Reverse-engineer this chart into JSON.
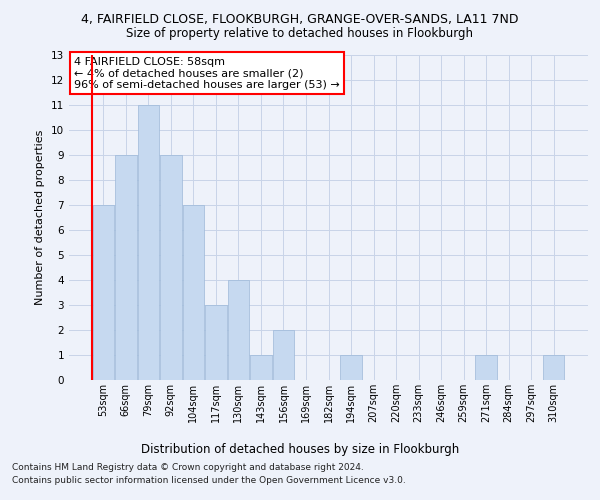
{
  "title_line1": "4, FAIRFIELD CLOSE, FLOOKBURGH, GRANGE-OVER-SANDS, LA11 7ND",
  "title_line2": "Size of property relative to detached houses in Flookburgh",
  "xlabel": "Distribution of detached houses by size in Flookburgh",
  "ylabel": "Number of detached properties",
  "categories": [
    "53sqm",
    "66sqm",
    "79sqm",
    "92sqm",
    "104sqm",
    "117sqm",
    "130sqm",
    "143sqm",
    "156sqm",
    "169sqm",
    "182sqm",
    "194sqm",
    "207sqm",
    "220sqm",
    "233sqm",
    "246sqm",
    "259sqm",
    "271sqm",
    "284sqm",
    "297sqm",
    "310sqm"
  ],
  "values": [
    7,
    9,
    11,
    9,
    7,
    3,
    4,
    1,
    2,
    0,
    0,
    1,
    0,
    0,
    0,
    0,
    0,
    1,
    0,
    0,
    1
  ],
  "bar_color": "#c6d9f0",
  "bar_edge_color": "#9db8d8",
  "annotation_box_text": "4 FAIRFIELD CLOSE: 58sqm\n← 4% of detached houses are smaller (2)\n96% of semi-detached houses are larger (53) →",
  "annotation_box_color": "white",
  "annotation_box_edge_color": "red",
  "vline_color": "red",
  "ylim": [
    0,
    13
  ],
  "yticks": [
    0,
    1,
    2,
    3,
    4,
    5,
    6,
    7,
    8,
    9,
    10,
    11,
    12,
    13
  ],
  "grid_color": "#c8d4e8",
  "footer_line1": "Contains HM Land Registry data © Crown copyright and database right 2024.",
  "footer_line2": "Contains public sector information licensed under the Open Government Licence v3.0.",
  "bg_color": "#eef2fa"
}
